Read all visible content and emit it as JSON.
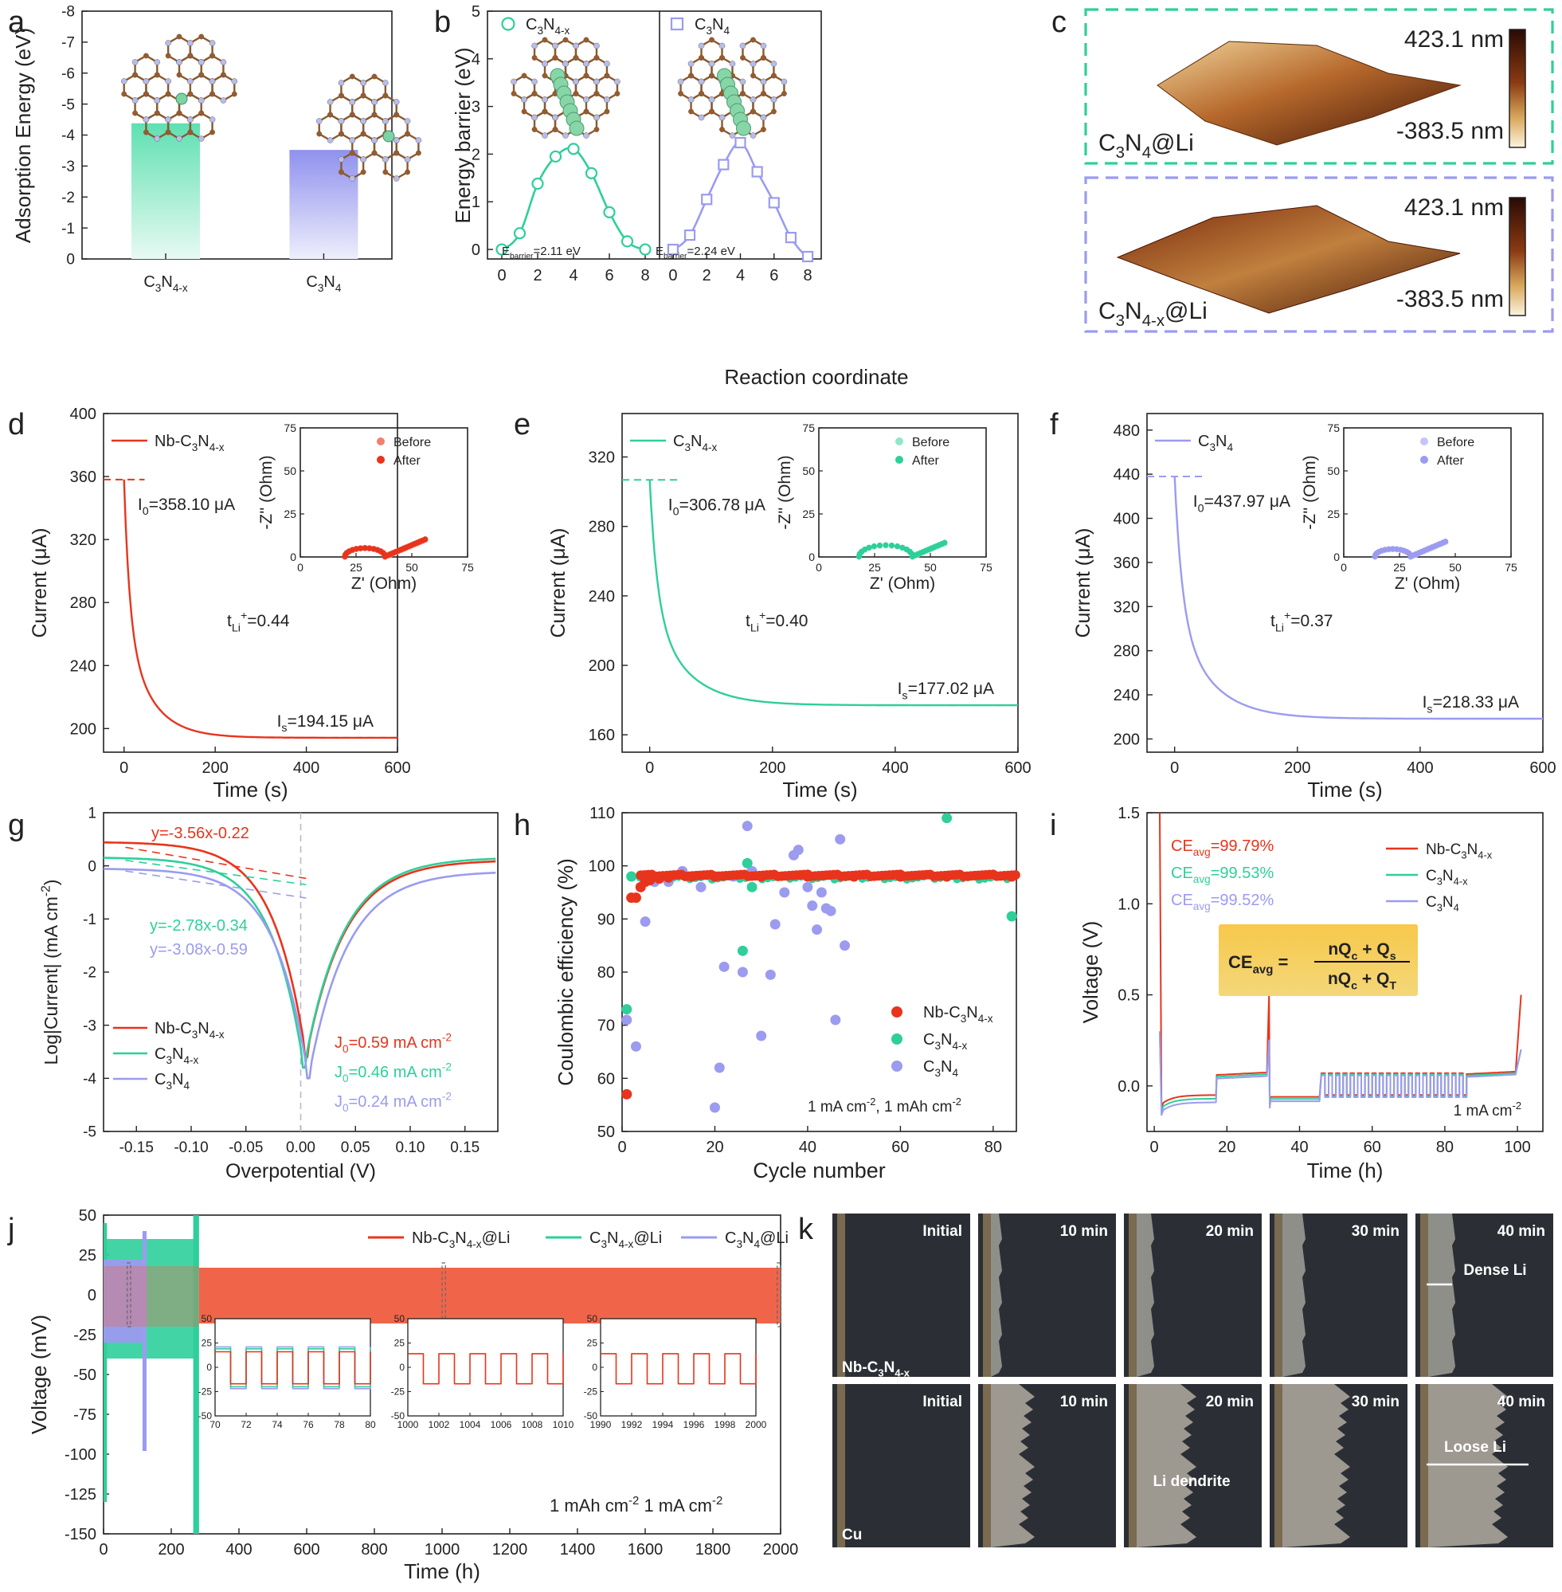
{
  "panel_letters": [
    "a",
    "b",
    "c",
    "d",
    "e",
    "f",
    "g",
    "h",
    "i",
    "j",
    "k"
  ],
  "colors": {
    "nb": "#e8341c",
    "c3n4x": "#2ecf9a",
    "c3n4": "#9b9bf0",
    "axis": "#222222"
  },
  "chart_data": [
    {
      "panel": "a",
      "type": "bar",
      "ylabel": "Adsorption Energy (eV)",
      "ylim": [
        0,
        -8
      ],
      "yticks": [
        "-8",
        "-7",
        "-6",
        "-5",
        "-4",
        "-3",
        "-2",
        "-1",
        "0"
      ],
      "categories": [
        "C3N4-x",
        "C3N4"
      ],
      "values": [
        -4.38,
        -3.52
      ],
      "category_text": [
        {
          "main": "C",
          "sub1": "3",
          "mid": "N",
          "sub2": "4-x"
        },
        {
          "main": "C",
          "sub1": "3",
          "mid": "N",
          "sub2": "4"
        }
      ]
    },
    {
      "panel": "b",
      "type": "line",
      "ylabel": "Energy barrier (eV)",
      "xlabel": "Reaction coordinate",
      "ylim": [
        -0.2,
        5
      ],
      "xlim": [
        -0.8,
        8.8
      ],
      "xticks": [
        "0",
        "2",
        "4",
        "6",
        "8"
      ],
      "yticks": [
        "0",
        "1",
        "2",
        "3",
        "4",
        "5"
      ],
      "series": [
        {
          "name": "C3N4-x",
          "legend": {
            "main": "C",
            "sub1": "3",
            "mid": "N",
            "sub2": "4-x"
          },
          "x": [
            0,
            1,
            2,
            3,
            4,
            5,
            6,
            7,
            8
          ],
          "y": [
            0,
            0.34,
            1.38,
            1.95,
            2.11,
            1.6,
            0.78,
            0.17,
            0
          ],
          "annotation": "Ebarrier=2.11 eV"
        },
        {
          "name": "C3N4",
          "legend": {
            "main": "C",
            "sub1": "3",
            "mid": "N",
            "sub2": "4"
          },
          "x": [
            0,
            1,
            2,
            3,
            4,
            5,
            6,
            7,
            8
          ],
          "y": [
            0,
            0.3,
            1.05,
            1.78,
            2.24,
            1.63,
            0.98,
            0.25,
            -0.15
          ],
          "annotation": "Ebarrier=2.24 eV"
        }
      ]
    },
    {
      "panel": "c",
      "type": "heatmap",
      "images": [
        {
          "label": "C3N4@Li",
          "max": "423.1 nm",
          "min": "-383.5 nm"
        },
        {
          "label": "C3N4-x@Li",
          "max": "423.1 nm",
          "min": "-383.5 nm"
        }
      ]
    },
    {
      "panel": "d",
      "type": "line",
      "xlabel": "Time (s)",
      "ylabel": "Current (μA)",
      "xlim": [
        -45,
        600
      ],
      "ylim": [
        185,
        400
      ],
      "xticks": [
        "0",
        "200",
        "400",
        "600"
      ],
      "yticks": [
        "200",
        "240",
        "280",
        "320",
        "360",
        "400"
      ],
      "series_name": "Nb-C3N4-x",
      "I0": 358.1,
      "Is": 194.15,
      "I0_text": "I0=358.10 μA",
      "Is_text": "Is=194.15 μA",
      "t_text": "0.44",
      "inset": {
        "xlabel": "Z' (Ohm)",
        "ylabel": "-Z'' (Ohm)",
        "xticks": [
          "0",
          "25",
          "50",
          "75"
        ],
        "yticks": [
          "0",
          "25",
          "50",
          "75"
        ],
        "legend": [
          "Before",
          "After"
        ]
      }
    },
    {
      "panel": "e",
      "type": "line",
      "xlabel": "Time (s)",
      "ylabel": "Current (μA)",
      "xlim": [
        -45,
        600
      ],
      "ylim": [
        150,
        345
      ],
      "xticks": [
        "0",
        "200",
        "400",
        "600"
      ],
      "yticks": [
        "160",
        "200",
        "240",
        "280",
        "320"
      ],
      "series_name": "C3N4-x",
      "I0": 306.78,
      "Is": 177.02,
      "I0_text": "I0=306.78 μA",
      "Is_text": "Is=177.02 μA",
      "t_text": "0.40",
      "inset": {
        "xlabel": "Z' (Ohm)",
        "ylabel": "-Z'' (Ohm)",
        "xticks": [
          "0",
          "25",
          "50",
          "75"
        ],
        "yticks": [
          "0",
          "25",
          "50",
          "75"
        ],
        "legend": [
          "Before",
          "After"
        ]
      }
    },
    {
      "panel": "f",
      "type": "line",
      "xlabel": "Time (s)",
      "ylabel": "Current (μA)",
      "xlim": [
        -45,
        600
      ],
      "ylim": [
        188,
        495
      ],
      "xticks": [
        "0",
        "200",
        "400",
        "600"
      ],
      "yticks": [
        "200",
        "240",
        "280",
        "320",
        "360",
        "400",
        "440",
        "480"
      ],
      "series_name": "C3N4",
      "I0": 437.97,
      "Is": 218.33,
      "I0_text": "I0=437.97 μA",
      "Is_text": "Is=218.33 μA",
      "t_text": "0.37",
      "inset": {
        "xlabel": "Z' (Ohm)",
        "ylabel": "-Z'' (Ohm)",
        "xticks": [
          "0",
          "25",
          "50",
          "75"
        ],
        "yticks": [
          "0",
          "25",
          "50",
          "75"
        ],
        "legend": [
          "Before",
          "After"
        ]
      }
    },
    {
      "panel": "g",
      "type": "line",
      "xlabel": "Overpotential (V)",
      "ylabel": "Log|Current| (mA cm-2)",
      "xlim": [
        -0.18,
        0.18
      ],
      "ylim": [
        -5,
        1
      ],
      "xticks": [
        "-0.15",
        "-0.10",
        "-0.05",
        "0.00",
        "0.05",
        "0.10",
        "0.15"
      ],
      "yticks": [
        "1",
        "0",
        "-1",
        "-2",
        "-3",
        "-4",
        "-5"
      ],
      "fits": [
        "y=-3.56x-0.22",
        "y=-2.78x-0.34",
        "y=-3.08x-0.59"
      ],
      "exchange": [
        {
          "series": "Nb-C3N4-x",
          "text": "J0=0.59 mA cm-2"
        },
        {
          "series": "C3N4-x",
          "text": "J0=0.46 mA cm-2"
        },
        {
          "series": "C3N4",
          "text": "J0=0.24 mA cm-2"
        }
      ],
      "series": [
        "Nb-C3N4-x",
        "C3N4-x",
        "C3N4"
      ]
    },
    {
      "panel": "h",
      "type": "scatter",
      "xlabel": "Cycle number",
      "ylabel": "Coulombic efficiency (%)",
      "xlim": [
        0,
        85
      ],
      "ylim": [
        50,
        110
      ],
      "xticks": [
        "0",
        "20",
        "40",
        "60",
        "80"
      ],
      "yticks": [
        "50",
        "60",
        "70",
        "80",
        "90",
        "100",
        "110"
      ],
      "condition": "1 mA cm-2, 1 mAh cm-2",
      "series": [
        {
          "name": "Nb-C3N4-x",
          "points": [
            [
              1,
              57
            ],
            [
              2,
              94
            ],
            [
              3,
              94
            ],
            [
              4,
              96
            ],
            [
              5,
              97
            ],
            [
              6,
              97.3
            ],
            [
              8,
              97.6
            ],
            [
              10,
              97.8
            ],
            [
              15,
              98
            ],
            [
              20,
              98
            ],
            [
              30,
              98
            ],
            [
              40,
              98
            ],
            [
              50,
              98
            ],
            [
              60,
              98
            ],
            [
              70,
              98
            ],
            [
              84,
              98
            ]
          ]
        },
        {
          "name": "C3N4-x",
          "points": [
            [
              1,
              73
            ],
            [
              2,
              98
            ],
            [
              4,
              98
            ],
            [
              26,
              84
            ],
            [
              27,
              100.5
            ],
            [
              28,
              96
            ],
            [
              70,
              109
            ],
            [
              84,
              90.5
            ]
          ]
        },
        {
          "name": "C3N4",
          "points": [
            [
              1,
              71
            ],
            [
              3,
              66
            ],
            [
              5,
              89.5
            ],
            [
              7,
              97
            ],
            [
              10,
              97
            ],
            [
              13,
              99
            ],
            [
              17,
              96
            ],
            [
              20,
              54.5
            ],
            [
              21,
              62
            ],
            [
              22,
              81
            ],
            [
              24,
              98
            ],
            [
              26,
              80
            ],
            [
              27,
              107.5
            ],
            [
              28,
              99
            ],
            [
              30,
              68
            ],
            [
              32,
              79.5
            ],
            [
              33,
              89
            ],
            [
              35,
              95
            ],
            [
              37,
              102
            ],
            [
              38,
              103
            ],
            [
              40,
              96
            ],
            [
              41,
              92.5
            ],
            [
              42,
              88
            ],
            [
              43,
              95
            ],
            [
              44,
              92
            ],
            [
              45,
              91.5
            ],
            [
              46,
              71
            ],
            [
              47,
              105
            ],
            [
              48,
              85
            ]
          ]
        }
      ]
    },
    {
      "panel": "i",
      "type": "line",
      "xlabel": "Time (h)",
      "ylabel": "Voltage (V)",
      "xlim": [
        0,
        105
      ],
      "ylim": [
        -0.25,
        1.5
      ],
      "xticks": [
        "0",
        "20",
        "40",
        "60",
        "80",
        "100"
      ],
      "yticks": [
        "0.0",
        "0.5",
        "1.0",
        "1.5"
      ],
      "ce": [
        {
          "series": "Nb-C3N4-x",
          "text": "CEavg=99.79%"
        },
        {
          "series": "C3N4-x",
          "text": "CEavg=99.53%"
        },
        {
          "series": "C3N4",
          "text": "CEavg=99.52%"
        }
      ],
      "formula": {
        "lhs": "CEavg",
        "num": "nQc + Qs",
        "den": "nQc + QT"
      },
      "condition": "1 mA cm-2",
      "series": [
        "Nb-C3N4-x",
        "C3N4-x",
        "C3N4"
      ]
    },
    {
      "panel": "j",
      "type": "line",
      "xlabel": "Time (h)",
      "ylabel": "Voltage (mV)",
      "xlim": [
        0,
        2000
      ],
      "ylim": [
        -150,
        50
      ],
      "xticks": [
        "0",
        "200",
        "400",
        "600",
        "800",
        "1000",
        "1200",
        "1400",
        "1600",
        "1800",
        "2000"
      ],
      "yticks": [
        "50",
        "25",
        "0",
        "-25",
        "-50",
        "-75",
        "-100",
        "-125",
        "-150"
      ],
      "legend": [
        "Nb-C3N4-x@Li",
        "C3N4-x@Li",
        "C3N4@Li"
      ],
      "condition": "1 mAh cm-2 1 mA cm-2",
      "insets": [
        {
          "xticks": [
            "70",
            "72",
            "74",
            "76",
            "78",
            "80"
          ],
          "yticks": [
            "50",
            "25",
            "0",
            "-25",
            "-50"
          ]
        },
        {
          "xticks": [
            "1000",
            "1002",
            "1004",
            "1006",
            "1008",
            "1010"
          ],
          "yticks": [
            "50",
            "25",
            "0",
            "-25",
            "-50"
          ]
        },
        {
          "xticks": [
            "1990",
            "1992",
            "1994",
            "1996",
            "1998",
            "2000"
          ],
          "yticks": [
            "50",
            "25",
            "0",
            "-25",
            "-50"
          ]
        }
      ]
    }
  ],
  "micrographs": {
    "times": [
      "Initial",
      "10 min",
      "20 min",
      "30 min",
      "40 min"
    ],
    "row1_label": "Nb-C3N4-x",
    "row2_label": "Cu",
    "dense": "Dense Li",
    "loose": "Loose Li",
    "dendrite": "Li dendrite"
  }
}
